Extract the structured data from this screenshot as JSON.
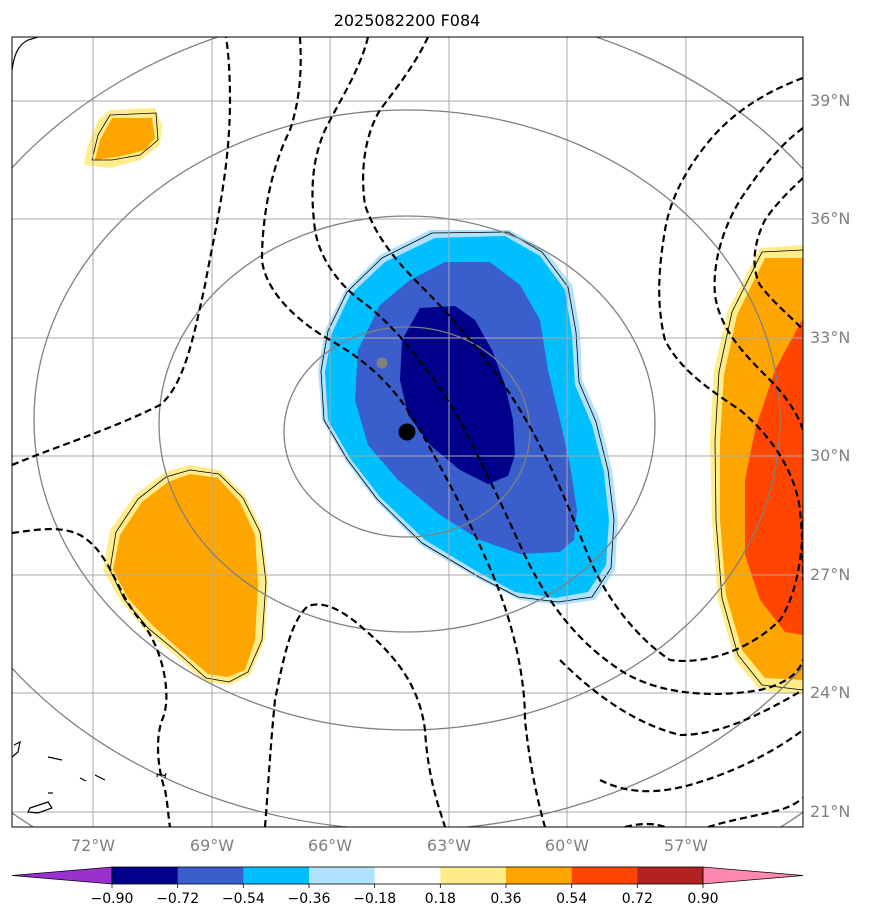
{
  "chart_data": {
    "type": "heatmap",
    "title": "2025082200 F084",
    "projection": "map",
    "lon_range": [
      -74.8,
      -54.1
    ],
    "lat_range": [
      20.6,
      40.6
    ],
    "lon_ticks": [
      -72,
      -69,
      -66,
      -63,
      -60,
      -57
    ],
    "lon_tick_labels": [
      "72°W",
      "69°W",
      "66°W",
      "63°W",
      "60°W",
      "57°W"
    ],
    "lat_ticks": [
      21,
      24,
      27,
      30,
      33,
      36,
      39
    ],
    "lat_tick_labels": [
      "21°N",
      "24°N",
      "27°N",
      "30°N",
      "33°N",
      "36°N",
      "39°N"
    ],
    "grid": true,
    "colorbar": {
      "ticks": [
        -0.9,
        -0.72,
        -0.54,
        -0.36,
        -0.18,
        0.18,
        0.36,
        0.54,
        0.72,
        0.9
      ],
      "tick_labels": [
        "−0.90",
        "−0.72",
        "−0.54",
        "−0.36",
        "−0.18",
        "0.18",
        "0.36",
        "0.54",
        "0.72",
        "0.90"
      ],
      "under_color": "#9932cc",
      "over_color": "#ff88b0",
      "colors": [
        "#00008b",
        "#3a5fcd",
        "#00bfff",
        "#b0e2ff",
        "#ffffff",
        "#ffec8b",
        "#ffa500",
        "#ff4500",
        "#b22222"
      ]
    },
    "markers": [
      {
        "name": "center-current",
        "lon": -64.1,
        "lat": 30.6,
        "color": "#000000"
      },
      {
        "name": "center-previous",
        "lon": -64.7,
        "lat": 32.3,
        "color": "#808080"
      }
    ],
    "contour_label": "1",
    "range_ring_center": {
      "lon": -64.0,
      "lat": 30.8
    }
  }
}
